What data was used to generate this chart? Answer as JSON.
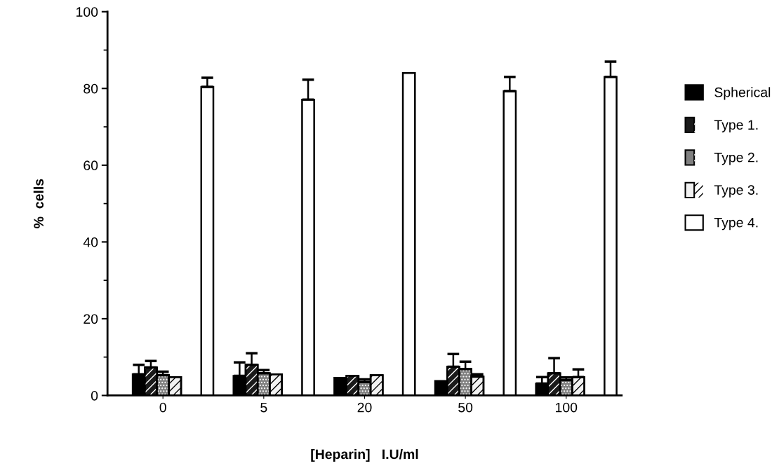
{
  "chart_data": {
    "type": "bar",
    "xlabel": "[Heparin]   I.U/ml",
    "ylabel": "%  cells",
    "categories": [
      "0",
      "5",
      "20",
      "50",
      "100"
    ],
    "series": [
      {
        "name": "Spherical",
        "color": "#000000",
        "values": [
          5.5,
          5.1,
          4.6,
          3.8,
          3.1
        ],
        "errors": [
          [
            5.5,
            8
          ],
          [
            5.1,
            8.6
          ],
          null,
          null,
          [
            3.1,
            4.8
          ]
        ]
      },
      {
        "name": "Type 1.",
        "color": "#1a1a1a",
        "values": [
          7.3,
          8,
          5.1,
          7.5,
          5.8
        ],
        "errors": [
          [
            7.3,
            9
          ],
          [
            8,
            11
          ],
          null,
          [
            7.5,
            10.8
          ],
          [
            5.8,
            9.7
          ]
        ]
      },
      {
        "name": "Type 2.",
        "color": "#808080",
        "values": [
          5.3,
          5.8,
          3.5,
          6.9,
          4
        ],
        "errors": [
          [
            5.3,
            6.2
          ],
          [
            5.8,
            6.6
          ],
          [
            3.5,
            4.2
          ],
          [
            6.9,
            8.8
          ],
          [
            4,
            4.7
          ]
        ]
      },
      {
        "name": "Type 3.",
        "color": "#f2f2f2",
        "values": [
          4.8,
          5.5,
          5.3,
          4.9,
          4.8
        ],
        "errors": [
          null,
          null,
          null,
          [
            4.9,
            5.5
          ],
          [
            4.8,
            6.8
          ]
        ]
      },
      {
        "name": "Type 4.",
        "color": "#ffffff",
        "values": [
          80.4,
          77.1,
          84,
          79.3,
          83
        ],
        "errors": [
          [
            80.4,
            82.8
          ],
          [
            77.1,
            82.3
          ],
          null,
          [
            79.3,
            83
          ],
          [
            83,
            87
          ]
        ]
      }
    ],
    "ylim": [
      0,
      100
    ],
    "yticks": [
      0,
      20,
      40,
      60,
      80,
      100
    ],
    "grid": false,
    "legend": "right"
  }
}
